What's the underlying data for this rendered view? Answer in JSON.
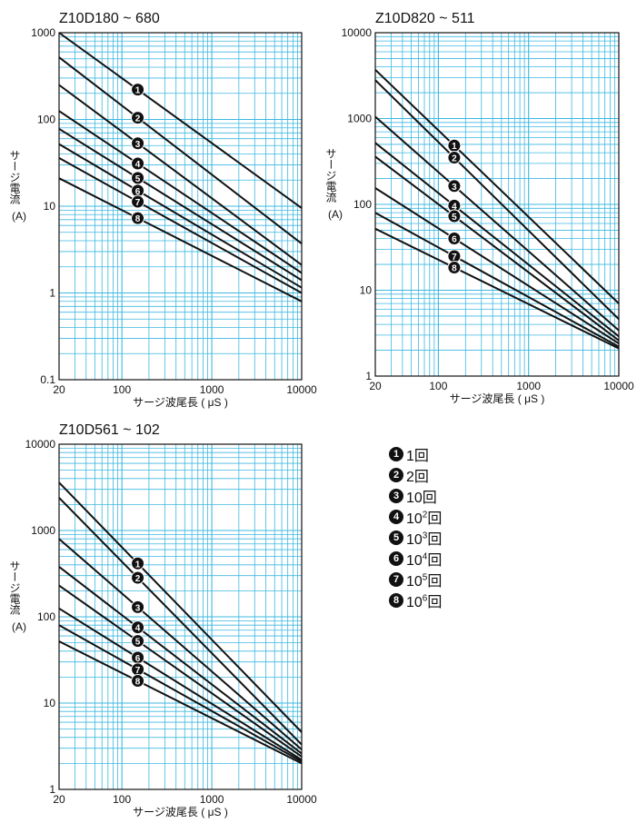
{
  "chart_data": [
    {
      "type": "line",
      "title": "Z10D180 ~ 680",
      "xlabel": "サージ波尾長 ( μS )",
      "ylabel": "サージ電流 (A)",
      "x_scale": "log",
      "y_scale": "log",
      "xlim": [
        20,
        10000
      ],
      "ylim": [
        0.1,
        1000
      ],
      "xticks": [
        "20",
        "100",
        "1000",
        "10000"
      ],
      "yticks": [
        "0.1",
        "1",
        "10",
        "100",
        "1000"
      ],
      "grid": true,
      "series": [
        {
          "name": "1",
          "points": [
            [
              20,
              1000
            ],
            [
              10000,
              9.5
            ]
          ]
        },
        {
          "name": "2",
          "points": [
            [
              20,
              520
            ],
            [
              10000,
              3.7
            ]
          ]
        },
        {
          "name": "3",
          "points": [
            [
              20,
              250
            ],
            [
              10000,
              2.1
            ]
          ]
        },
        {
          "name": "4",
          "points": [
            [
              20,
              125
            ],
            [
              10000,
              1.7
            ]
          ]
        },
        {
          "name": "5",
          "points": [
            [
              20,
              78
            ],
            [
              10000,
              1.4
            ]
          ]
        },
        {
          "name": "6",
          "points": [
            [
              20,
              52
            ],
            [
              10000,
              1.15
            ]
          ]
        },
        {
          "name": "7",
          "points": [
            [
              20,
              36
            ],
            [
              10000,
              1.0
            ]
          ]
        },
        {
          "name": "8",
          "points": [
            [
              20,
              21
            ],
            [
              10000,
              0.8
            ]
          ]
        }
      ]
    },
    {
      "type": "line",
      "title": "Z10D820 ~ 511",
      "xlabel": "サージ波尾長 ( μS )",
      "ylabel": "サージ電流 (A)",
      "x_scale": "log",
      "y_scale": "log",
      "xlim": [
        20,
        10000
      ],
      "ylim": [
        1,
        10000
      ],
      "xticks": [
        "20",
        "100",
        "1000",
        "10000"
      ],
      "yticks": [
        "1",
        "10",
        "100",
        "1000",
        "10000"
      ],
      "grid": true,
      "series": [
        {
          "name": "1",
          "points": [
            [
              20,
              3700
            ],
            [
              10000,
              7
            ]
          ]
        },
        {
          "name": "2",
          "points": [
            [
              20,
              2800
            ],
            [
              10000,
              4.6
            ]
          ]
        },
        {
          "name": "3",
          "points": [
            [
              20,
              1050
            ],
            [
              10000,
              3.4
            ]
          ]
        },
        {
          "name": "4",
          "points": [
            [
              20,
              520
            ],
            [
              10000,
              2.9
            ]
          ]
        },
        {
          "name": "5",
          "points": [
            [
              20,
              360
            ],
            [
              10000,
              2.6
            ]
          ]
        },
        {
          "name": "6",
          "points": [
            [
              20,
              155
            ],
            [
              10000,
              2.4
            ]
          ]
        },
        {
          "name": "7",
          "points": [
            [
              20,
              80
            ],
            [
              10000,
              2.2
            ]
          ]
        },
        {
          "name": "8",
          "points": [
            [
              20,
              52
            ],
            [
              10000,
              2.1
            ]
          ]
        }
      ]
    },
    {
      "type": "line",
      "title": "Z10D561 ~ 102",
      "xlabel": "サージ波尾長 ( μS )",
      "ylabel": "サージ電流 (A)",
      "x_scale": "log",
      "y_scale": "log",
      "xlim": [
        20,
        10000
      ],
      "ylim": [
        1,
        10000
      ],
      "xticks": [
        "20",
        "100",
        "1000",
        "10000"
      ],
      "yticks": [
        "1",
        "10",
        "100",
        "1000",
        "10000"
      ],
      "grid": true,
      "series": [
        {
          "name": "1",
          "points": [
            [
              20,
              3600
            ],
            [
              10000,
              4.6
            ]
          ]
        },
        {
          "name": "2",
          "points": [
            [
              20,
              2400
            ],
            [
              10000,
              3.3
            ]
          ]
        },
        {
          "name": "3",
          "points": [
            [
              20,
              800
            ],
            [
              10000,
              2.9
            ]
          ]
        },
        {
          "name": "4",
          "points": [
            [
              20,
              380
            ],
            [
              10000,
              2.6
            ]
          ]
        },
        {
          "name": "5",
          "points": [
            [
              20,
              230
            ],
            [
              10000,
              2.4
            ]
          ]
        },
        {
          "name": "6",
          "points": [
            [
              20,
              125
            ],
            [
              10000,
              2.2
            ]
          ]
        },
        {
          "name": "7",
          "points": [
            [
              20,
              80
            ],
            [
              10000,
              2.1
            ]
          ]
        },
        {
          "name": "8",
          "points": [
            [
              20,
              52
            ],
            [
              10000,
              2.0
            ]
          ]
        }
      ]
    }
  ],
  "legend": [
    {
      "marker": "1",
      "text": "1回"
    },
    {
      "marker": "2",
      "text": "2回"
    },
    {
      "marker": "3",
      "text": "10回"
    },
    {
      "marker": "4",
      "text": "10",
      "exp": "2",
      "suffix": "回"
    },
    {
      "marker": "5",
      "text": "10",
      "exp": "3",
      "suffix": "回"
    },
    {
      "marker": "6",
      "text": "10",
      "exp": "4",
      "suffix": "回"
    },
    {
      "marker": "7",
      "text": "10",
      "exp": "5",
      "suffix": "回"
    },
    {
      "marker": "8",
      "text": "10",
      "exp": "6",
      "suffix": "回"
    }
  ],
  "colors": {
    "grid": "#3db8e0",
    "line": "#111111",
    "frame": "#111111"
  }
}
